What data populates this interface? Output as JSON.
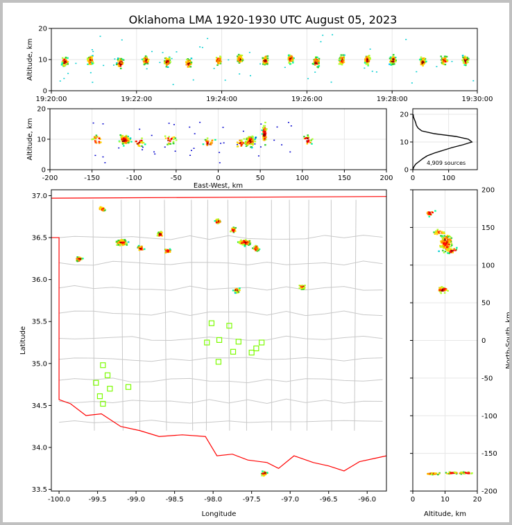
{
  "title": "Oklahoma LMA 1920-1930 UTC August 05, 2023",
  "colors": {
    "background": "#ffffff",
    "frame": "#c0c0c0",
    "state_border": "#ff0000",
    "county_lines": "#c8c8c8",
    "stations": "#7cfc00",
    "grid": "#e6e6e6"
  },
  "chart_data": [
    {
      "name": "time-altitude",
      "type": "scatter",
      "xlabel": "",
      "ylabel": "Altitude, km",
      "x_ticks": [
        "19:20:00",
        "19:22:00",
        "19:24:00",
        "19:26:00",
        "19:28:00",
        "19:30:00"
      ],
      "xlim": [
        0,
        10
      ],
      "ylim": [
        0,
        20
      ],
      "y_ticks": [
        "0",
        "10",
        "20"
      ],
      "x_unit_note": "minutes after 19:20:00",
      "grid": true,
      "clusters": [
        {
          "t": 0.3,
          "z": 9.5
        },
        {
          "t": 0.9,
          "z": 10
        },
        {
          "t": 1.6,
          "z": 9
        },
        {
          "t": 2.2,
          "z": 10
        },
        {
          "t": 2.7,
          "z": 9.5
        },
        {
          "t": 3.2,
          "z": 9
        },
        {
          "t": 3.9,
          "z": 10
        },
        {
          "t": 4.4,
          "z": 10.5
        },
        {
          "t": 5.0,
          "z": 10
        },
        {
          "t": 5.6,
          "z": 10.5
        },
        {
          "t": 6.2,
          "z": 9.5
        },
        {
          "t": 6.8,
          "z": 10
        },
        {
          "t": 7.4,
          "z": 10
        },
        {
          "t": 8.0,
          "z": 10
        },
        {
          "t": 8.7,
          "z": 9.5
        },
        {
          "t": 9.2,
          "z": 10
        },
        {
          "t": 9.7,
          "z": 10
        }
      ]
    },
    {
      "name": "east-west-altitude",
      "type": "scatter",
      "xlabel": "East-West, km",
      "ylabel": "Altitude, km",
      "xlim": [
        -200,
        200
      ],
      "ylim": [
        0,
        20
      ],
      "x_ticks": [
        "-200",
        "-150",
        "-100",
        "-50",
        "0",
        "50",
        "100",
        "150",
        "200"
      ],
      "y_ticks": [
        "0",
        "10",
        "20"
      ],
      "grid": true,
      "clusters": [
        {
          "x": -145,
          "z": 10
        },
        {
          "x": -112,
          "z": 10
        },
        {
          "x": -95,
          "z": 9
        },
        {
          "x": -58,
          "z": 10
        },
        {
          "x": -12,
          "z": 9
        },
        {
          "x": 25,
          "z": 9
        },
        {
          "x": 37,
          "z": 9.5
        },
        {
          "x": 54,
          "z": 12
        },
        {
          "x": 105,
          "z": 10
        }
      ]
    },
    {
      "name": "altitude-histogram",
      "type": "line",
      "xlim": [
        0,
        180
      ],
      "ylim": [
        0,
        22
      ],
      "x_ticks": [
        "0",
        "100"
      ],
      "y_ticks": [
        "0",
        "10",
        "20"
      ],
      "annotation": "4,909 sources",
      "grid": true,
      "profile": [
        {
          "count": 0,
          "z": 0
        },
        {
          "count": 3,
          "z": 1
        },
        {
          "count": 8,
          "z": 2
        },
        {
          "count": 18,
          "z": 3
        },
        {
          "count": 28,
          "z": 4
        },
        {
          "count": 40,
          "z": 5
        },
        {
          "count": 60,
          "z": 6
        },
        {
          "count": 85,
          "z": 7
        },
        {
          "count": 110,
          "z": 8
        },
        {
          "count": 140,
          "z": 9
        },
        {
          "count": 165,
          "z": 10
        },
        {
          "count": 155,
          "z": 11
        },
        {
          "count": 120,
          "z": 12
        },
        {
          "count": 60,
          "z": 13
        },
        {
          "count": 25,
          "z": 14
        },
        {
          "count": 15,
          "z": 15
        },
        {
          "count": 10,
          "z": 16
        },
        {
          "count": 8,
          "z": 17
        },
        {
          "count": 5,
          "z": 18
        },
        {
          "count": 2,
          "z": 19
        },
        {
          "count": 1,
          "z": 20
        }
      ]
    },
    {
      "name": "plan-view",
      "type": "scatter",
      "xlabel": "Longitude",
      "ylabel": "Latitude",
      "xlim": [
        -100.1,
        -95.75
      ],
      "ylim": [
        33.48,
        37.07
      ],
      "x_ticks": [
        "-100.0",
        "-99.5",
        "-99.0",
        "-98.5",
        "-98.0",
        "-97.5",
        "-97.0",
        "-96.5",
        "-96.0"
      ],
      "y_ticks": [
        "33.5",
        "34.0",
        "34.5",
        "35.0",
        "35.5",
        "36.0",
        "36.5",
        "37.0"
      ],
      "grid": false,
      "clusters": [
        {
          "lon": -99.45,
          "lat": 36.85
        },
        {
          "lon": -99.2,
          "lat": 36.45
        },
        {
          "lon": -98.95,
          "lat": 36.38
        },
        {
          "lon": -99.75,
          "lat": 36.25
        },
        {
          "lon": -98.6,
          "lat": 36.35
        },
        {
          "lon": -97.95,
          "lat": 36.7
        },
        {
          "lon": -97.75,
          "lat": 36.6
        },
        {
          "lon": -97.6,
          "lat": 36.45
        },
        {
          "lon": -97.45,
          "lat": 36.38
        },
        {
          "lon": -97.7,
          "lat": 35.88
        },
        {
          "lon": -96.85,
          "lat": 35.92
        },
        {
          "lon": -97.35,
          "lat": 33.7
        },
        {
          "lon": -98.7,
          "lat": 36.55
        }
      ],
      "stations": [
        {
          "lon": -98.02,
          "lat": 35.48
        },
        {
          "lon": -97.79,
          "lat": 35.45
        },
        {
          "lon": -98.08,
          "lat": 35.25
        },
        {
          "lon": -97.92,
          "lat": 35.28
        },
        {
          "lon": -97.67,
          "lat": 35.26
        },
        {
          "lon": -97.74,
          "lat": 35.14
        },
        {
          "lon": -97.5,
          "lat": 35.13
        },
        {
          "lon": -97.44,
          "lat": 35.18
        },
        {
          "lon": -97.37,
          "lat": 35.25
        },
        {
          "lon": -97.93,
          "lat": 35.02
        },
        {
          "lon": -99.43,
          "lat": 34.98
        },
        {
          "lon": -99.37,
          "lat": 34.86
        },
        {
          "lon": -99.52,
          "lat": 34.77
        },
        {
          "lon": -99.34,
          "lat": 34.7
        },
        {
          "lon": -99.1,
          "lat": 34.72
        },
        {
          "lon": -99.47,
          "lat": 34.61
        },
        {
          "lon": -99.43,
          "lat": 34.52
        }
      ]
    },
    {
      "name": "altitude-north-south",
      "type": "scatter",
      "xlabel": "Altitude, km",
      "ylabel": "North-South, km",
      "xlim": [
        0,
        20
      ],
      "ylim": [
        -200,
        200
      ],
      "x_ticks": [
        "0",
        "10",
        "20"
      ],
      "y_ticks": [
        "-200",
        "-150",
        "-100",
        "-50",
        "0",
        "50",
        "100",
        "150",
        "200"
      ],
      "grid": true,
      "clusters": [
        {
          "z": 10,
          "y": 130
        },
        {
          "z": 8,
          "y": 145
        },
        {
          "z": 12,
          "y": 120
        },
        {
          "z": 9,
          "y": 68
        },
        {
          "z": 5,
          "y": 170
        },
        {
          "z": 12,
          "y": -175
        },
        {
          "z": 6,
          "y": -176
        },
        {
          "z": 16,
          "y": -175
        }
      ]
    }
  ]
}
